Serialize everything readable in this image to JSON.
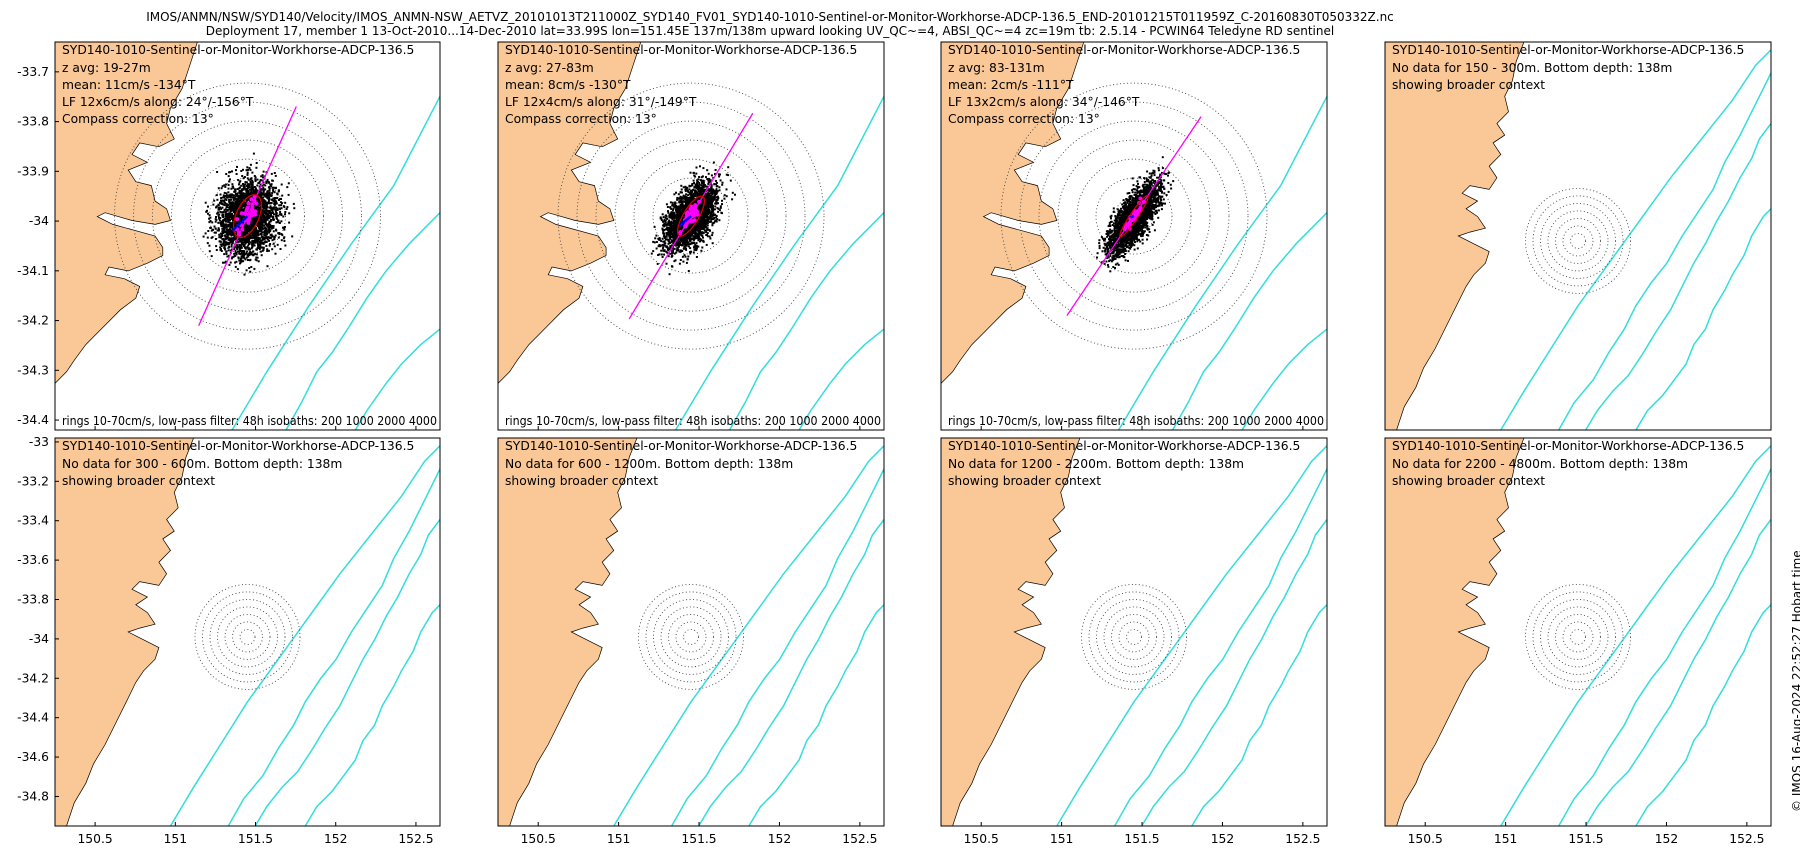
{
  "header": {
    "line1": "IMOS/ANMN/NSW/SYD140/Velocity/IMOS_ANMN-NSW_AETVZ_20101013T211000Z_SYD140_FV01_SYD140-1010-Sentinel-or-Monitor-Workhorse-ADCP-136.5_END-20101215T011959Z_C-20160830T050332Z.nc",
    "line2": "Deployment 17, member 1 13-Oct-2010...14-Dec-2010 lat=33.99S lon=151.45E 137m/138m upward looking UV_QC~=4, ABSI_QC~=4 zc=19m tb: 2.5.14 - PCWIN64 Teledyne RD sentinel"
  },
  "credit": "© IMOS 16-Aug-2024 22:52:27 Hobart time",
  "colors": {
    "land": "#fac896",
    "isobath": "#33dddd",
    "points": "#000000",
    "lowpass": "#ff00ff",
    "ellipse": "#dd0000",
    "mean_vector": "#0000ff"
  },
  "chart_data": [
    {
      "type": "scatter",
      "panel": "row1-col1",
      "title": "SYD140-1010-Sentinel-or-Monitor-Workhorse-ADCP-136.5",
      "info": [
        "z avg: 19-27m",
        "mean: 11cm/s -134°T",
        "LF 12x6cm/s along: 24°/-156°T",
        "Compass correction: 13°"
      ],
      "footer": "rings 10-70cm/s, low-pass filter: 48h isobaths: 200 1000 2000 4000",
      "x_ticks": [
        150.5,
        151,
        151.5,
        152,
        152.5
      ],
      "y_ticks": [
        -33.7,
        -33.8,
        -33.9,
        -34,
        -34.1,
        -34.2,
        -34.3,
        -34.4
      ],
      "xlim": [
        150.25,
        152.65
      ],
      "ylim": [
        -34.42,
        -33.64
      ],
      "mean_speed_cm_s": 11,
      "mean_direction_degT": -134,
      "lf_major_cm_s": 12,
      "lf_minor_cm_s": 6,
      "axis_direction_degT": 24
    },
    {
      "type": "scatter",
      "panel": "row1-col2",
      "title": "SYD140-1010-Sentinel-or-Monitor-Workhorse-ADCP-136.5",
      "info": [
        "z avg: 27-83m",
        "mean: 8cm/s -130°T",
        "LF 12x4cm/s along: 31°/-149°T",
        "Compass correction: 13°"
      ],
      "footer": "rings 10-70cm/s, low-pass filter: 48h isobaths: 200 1000 2000 4000",
      "x_ticks": [
        150.5,
        151,
        151.5,
        152,
        152.5
      ],
      "y_ticks": [],
      "xlim": [
        150.25,
        152.65
      ],
      "ylim": [
        -34.42,
        -33.64
      ],
      "mean_speed_cm_s": 8,
      "mean_direction_degT": -130,
      "lf_major_cm_s": 12,
      "lf_minor_cm_s": 4,
      "axis_direction_degT": 31
    },
    {
      "type": "scatter",
      "panel": "row1-col3",
      "title": "SYD140-1010-Sentinel-or-Monitor-Workhorse-ADCP-136.5",
      "info": [
        "z avg: 83-131m",
        "mean: 2cm/s -111°T",
        "LF 13x2cm/s along: 34°/-146°T",
        "Compass correction: 13°"
      ],
      "footer": "rings 10-70cm/s, low-pass filter: 48h isobaths: 200 1000 2000 4000",
      "x_ticks": [
        150.5,
        151,
        151.5,
        152,
        152.5
      ],
      "y_ticks": [],
      "xlim": [
        150.25,
        152.65
      ],
      "ylim": [
        -34.42,
        -33.64
      ],
      "mean_speed_cm_s": 2,
      "mean_direction_degT": -111,
      "lf_major_cm_s": 13,
      "lf_minor_cm_s": 2,
      "axis_direction_degT": 34
    },
    {
      "type": "map",
      "panel": "row1-col4",
      "title": "SYD140-1010-Sentinel-or-Monitor-Workhorse-ADCP-136.5",
      "info": [
        "No data for 150 - 300m. Bottom depth: 138m",
        "showing broader context"
      ],
      "footer": "",
      "x_ticks": [],
      "y_ticks": [],
      "xlim": [
        150.25,
        152.65
      ],
      "ylim": [
        -34.95,
        -32.98
      ]
    },
    {
      "type": "map",
      "panel": "row2-col1",
      "title": "SYD140-1010-Sentinel-or-Monitor-Workhorse-ADCP-136.5",
      "info": [
        "No data for 300 - 600m. Bottom depth: 138m",
        "showing broader context"
      ],
      "footer": "",
      "x_ticks": [
        150.5,
        151,
        151.5,
        152,
        152.5
      ],
      "y_ticks": [
        -33,
        -33.2,
        -33.4,
        -33.6,
        -33.8,
        -34,
        -34.2,
        -34.4,
        -34.6,
        -34.8
      ],
      "xlim": [
        150.25,
        152.65
      ],
      "ylim": [
        -34.95,
        -32.98
      ]
    },
    {
      "type": "map",
      "panel": "row2-col2",
      "title": "SYD140-1010-Sentinel-or-Monitor-Workhorse-ADCP-136.5",
      "info": [
        "No data for 600 - 1200m. Bottom depth: 138m",
        "showing broader context"
      ],
      "footer": "",
      "x_ticks": [
        150.5,
        151,
        151.5,
        152,
        152.5
      ],
      "y_ticks": [],
      "xlim": [
        150.25,
        152.65
      ],
      "ylim": [
        -34.95,
        -32.98
      ]
    },
    {
      "type": "map",
      "panel": "row2-col3",
      "title": "SYD140-1010-Sentinel-or-Monitor-Workhorse-ADCP-136.5",
      "info": [
        "No data for 1200 - 2200m. Bottom depth: 138m",
        "showing broader context"
      ],
      "footer": "",
      "x_ticks": [
        150.5,
        151,
        151.5,
        152,
        152.5
      ],
      "y_ticks": [],
      "xlim": [
        150.25,
        152.65
      ],
      "ylim": [
        -34.95,
        -32.98
      ]
    },
    {
      "type": "map",
      "panel": "row2-col4",
      "title": "SYD140-1010-Sentinel-or-Monitor-Workhorse-ADCP-136.5",
      "info": [
        "No data for 2200 - 4800m. Bottom depth: 138m",
        "showing broader context"
      ],
      "footer": "",
      "x_ticks": [
        150.5,
        151,
        151.5,
        152,
        152.5
      ],
      "y_ticks": [],
      "xlim": [
        150.25,
        152.65
      ],
      "ylim": [
        -34.95,
        -32.98
      ]
    }
  ]
}
